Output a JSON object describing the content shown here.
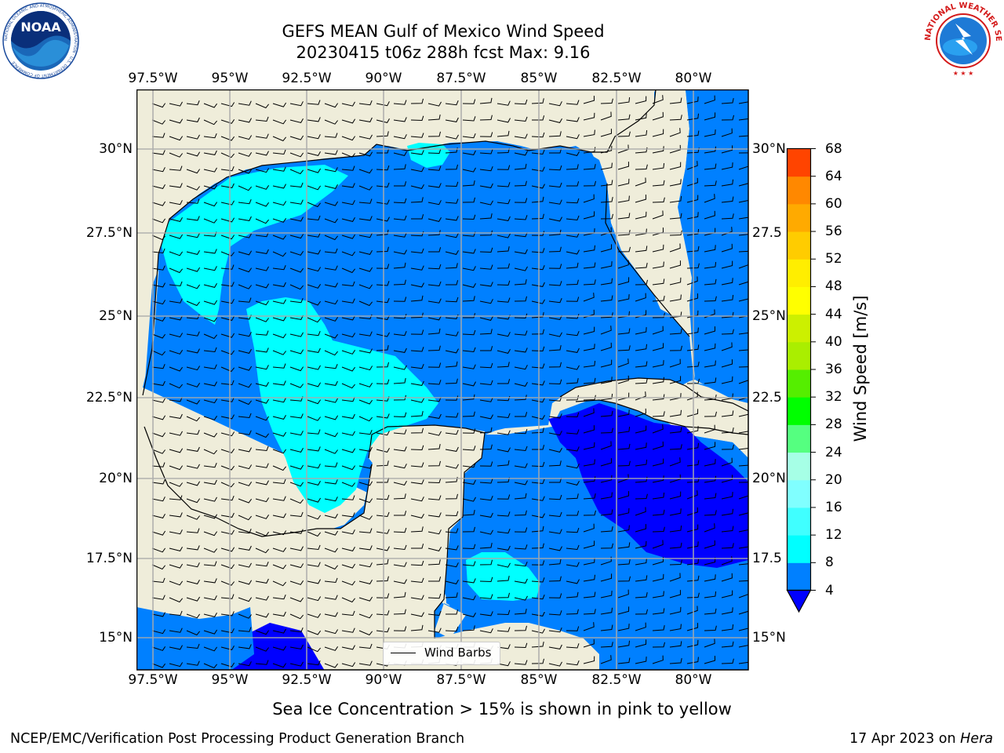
{
  "header": {
    "title": "GEFS MEAN Gulf of Mexico Wind Speed",
    "subtitle": "20230415 t06z 288h fcst   Max: 9.16"
  },
  "map": {
    "lon_labels": [
      "97.5°W",
      "95°W",
      "92.5°W",
      "90°W",
      "87.5°W",
      "85°W",
      "82.5°W",
      "80°W"
    ],
    "lat_labels_left": [
      "30°N",
      "27.5°N",
      "25°N",
      "22.5°N",
      "20°N",
      "17.5°N",
      "15°N"
    ],
    "lat_labels_right": [
      "30°N",
      "27.5",
      "25°N",
      "22.5",
      "20°N",
      "17.5",
      "15°N"
    ],
    "legend_label": "Wind Barbs",
    "colors": {
      "land": "#efedda",
      "wind_4_8": "#0080ff",
      "wind_8_12": "#00ffff",
      "wind_below_4": "#0000ff"
    }
  },
  "colorbar": {
    "label": "Wind Speed [m/s]",
    "ticks": [
      "4",
      "8",
      "12",
      "16",
      "20",
      "24",
      "28",
      "32",
      "36",
      "40",
      "44",
      "48",
      "52",
      "56",
      "60",
      "64",
      "68"
    ],
    "colors": [
      "#0080ff",
      "#00ffff",
      "#40ffff",
      "#80ffff",
      "#a6ffe6",
      "#55ff80",
      "#00ff00",
      "#55ee00",
      "#aaee00",
      "#ccf000",
      "#ffff00",
      "#ffee00",
      "#ffcc00",
      "#ffaa00",
      "#ff8800",
      "#ff4400",
      "#ff0000"
    ],
    "extend_color": "#0000ff"
  },
  "footer": {
    "note": "Sea Ice Concentration > 15% is shown in pink to yellow",
    "left": "NCEP/EMC/Verification Post Processing Product Generation Branch",
    "right_date": "17 Apr 2023 on ",
    "right_machine": "Hera"
  },
  "logos": {
    "noaa_text": "NOAA",
    "noaa_ring_text": "NATIONAL OCEANIC AND ATMOSPHERIC ADMINISTRATION · U.S. DEPARTMENT OF COMMERCE",
    "nws_ring_text": "NATIONAL WEATHER SERVICE"
  }
}
